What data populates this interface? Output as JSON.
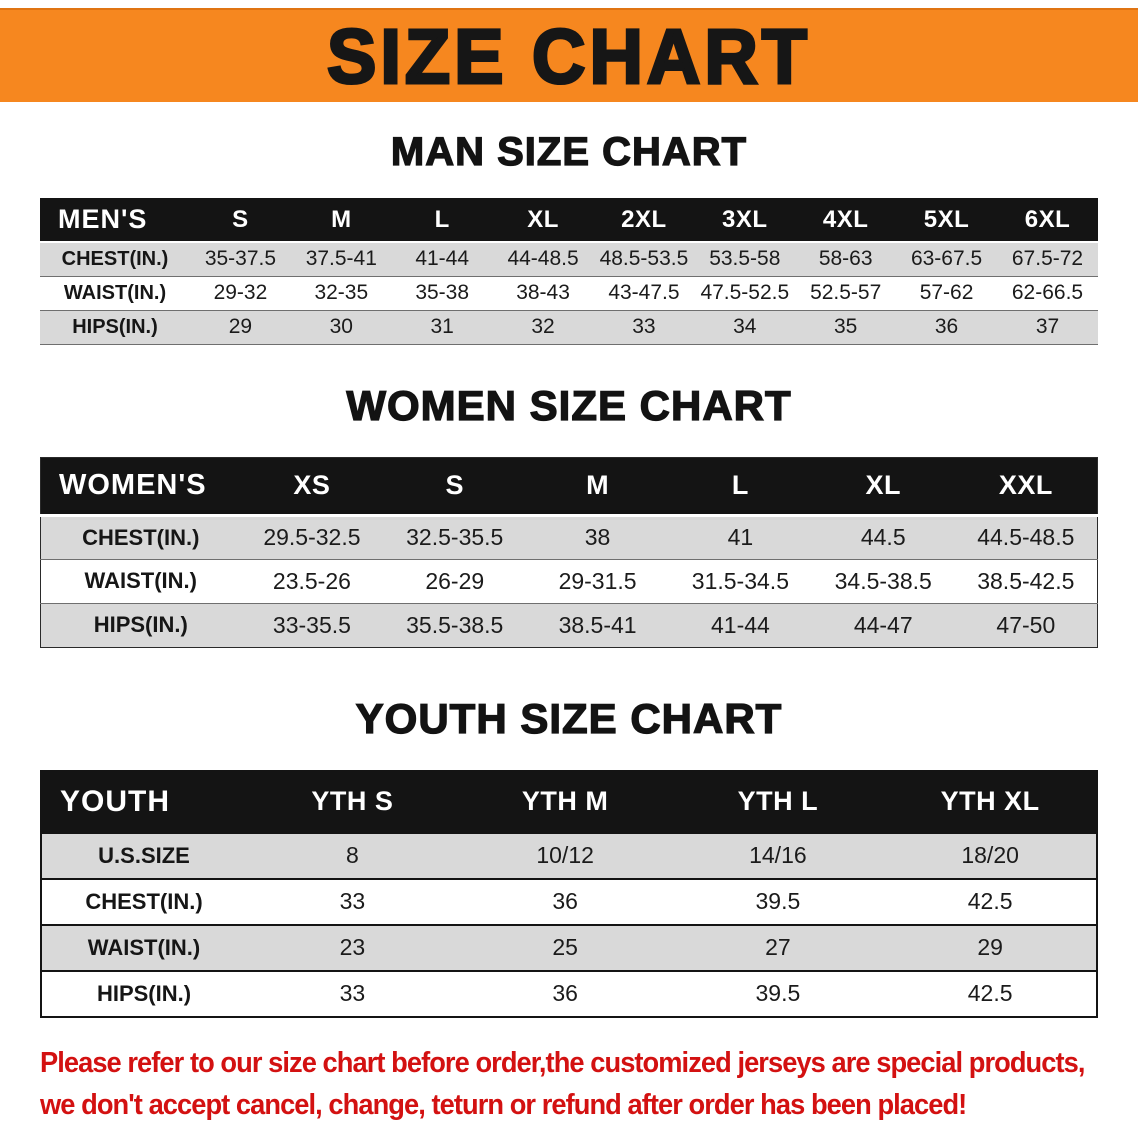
{
  "banner": {
    "title": "SIZE CHART"
  },
  "sections": [
    {
      "heading": "MAN SIZE CHART",
      "table": {
        "label": "MEN'S",
        "columns": [
          "S",
          "M",
          "L",
          "XL",
          "2XL",
          "3XL",
          "4XL",
          "5XL",
          "6XL"
        ],
        "rows": [
          {
            "label": "CHEST(IN.)",
            "values": [
              "35-37.5",
              "37.5-41",
              "41-44",
              "44-48.5",
              "48.5-53.5",
              "53.5-58",
              "58-63",
              "63-67.5",
              "67.5-72"
            ]
          },
          {
            "label": "WAIST(IN.)",
            "values": [
              "29-32",
              "32-35",
              "35-38",
              "38-43",
              "43-47.5",
              "47.5-52.5",
              "52.5-57",
              "57-62",
              "62-66.5"
            ]
          },
          {
            "label": "HIPS(IN.)",
            "values": [
              "29",
              "30",
              "31",
              "32",
              "33",
              "34",
              "35",
              "36",
              "37"
            ]
          }
        ]
      }
    },
    {
      "heading": "WOMEN SIZE CHART",
      "table": {
        "label": "WOMEN'S",
        "columns": [
          "XS",
          "S",
          "M",
          "L",
          "XL",
          "XXL"
        ],
        "rows": [
          {
            "label": "CHEST(IN.)",
            "values": [
              "29.5-32.5",
              "32.5-35.5",
              "38",
              "41",
              "44.5",
              "44.5-48.5"
            ]
          },
          {
            "label": "WAIST(IN.)",
            "values": [
              "23.5-26",
              "26-29",
              "29-31.5",
              "31.5-34.5",
              "34.5-38.5",
              "38.5-42.5"
            ]
          },
          {
            "label": "HIPS(IN.)",
            "values": [
              "33-35.5",
              "35.5-38.5",
              "38.5-41",
              "41-44",
              "44-47",
              "47-50"
            ]
          }
        ]
      }
    },
    {
      "heading": "YOUTH SIZE CHART",
      "table": {
        "label": "YOUTH",
        "columns": [
          "YTH S",
          "YTH M",
          "YTH L",
          "YTH XL"
        ],
        "rows": [
          {
            "label": "U.S.SIZE",
            "values": [
              "8",
              "10/12",
              "14/16",
              "18/20"
            ]
          },
          {
            "label": "CHEST(IN.)",
            "values": [
              "33",
              "36",
              "39.5",
              "42.5"
            ]
          },
          {
            "label": "WAIST(IN.)",
            "values": [
              "23",
              "25",
              "27",
              "29"
            ]
          },
          {
            "label": "HIPS(IN.)",
            "values": [
              "33",
              "36",
              "39.5",
              "42.5"
            ]
          }
        ]
      }
    }
  ],
  "footer": {
    "line1": "Please refer to our size chart before order,the customized jerseys are special products,",
    "line2": "we don't accept cancel, change, teturn or refund after order has been placed!"
  },
  "colors": {
    "banner_bg": "#f6871f",
    "table_header_bg": "#141414",
    "row_stripe": "#d9d9d9",
    "footer_text": "#d31111"
  }
}
